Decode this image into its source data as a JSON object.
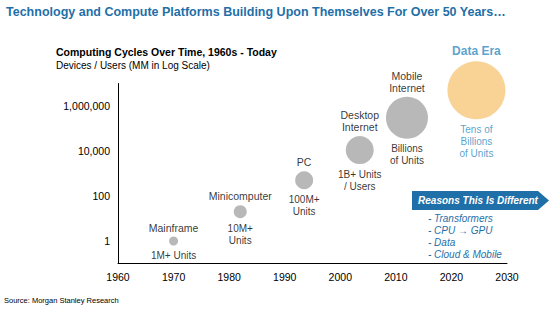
{
  "chart_data": {
    "type": "scatter",
    "title": "Technology and Compute Platforms Building Upon Themselves For Over 50 Years…",
    "subtitle": "Computing Cycles Over Time, 1960s - Today",
    "ylabel": "Devices / Users (MM in Log Scale)",
    "source": "Source: Morgan Stanley Research",
    "x": [
      1970,
      1982,
      1993.5,
      2003.5,
      2012,
      2024.5
    ],
    "values": [
      1,
      20,
      500,
      11000,
      300000,
      5000000
    ],
    "sizes": [
      9,
      13,
      18,
      28,
      42,
      58
    ],
    "colors": [
      "#a6a6a6",
      "#a6a6a6",
      "#a6a6a6",
      "#a6a6a6",
      "#a6a6a6",
      "#f8c77c"
    ],
    "labels": [
      "Mainframe",
      "Minicomputer",
      "PC",
      "Desktop\nInternet",
      "Mobile\nInternet",
      "Data Era"
    ],
    "sublabels": [
      "1M+ Units",
      "10M+\nUnits",
      "100M+\nUnits",
      "1B+ Units\n/ Users",
      "Billions\nof Units",
      "Tens of\nBillions\nof Units"
    ],
    "callout": "Reasons This Is Different",
    "reasons": [
      "- Transformers",
      "- CPU → GPU",
      "- Data",
      "- Cloud & Mobile"
    ],
    "log": "y",
    "grid": false,
    "xlim": [
      1960,
      2030
    ],
    "xticks": [
      1960,
      1970,
      1980,
      1990,
      2000,
      2010,
      2020,
      2030
    ],
    "ylim": [
      0.1,
      10000000
    ],
    "yticks": [
      1,
      100,
      {
        "value": 10000,
        "label": "10,000"
      },
      {
        "value": 1000000,
        "label": "1,000,000"
      }
    ]
  }
}
